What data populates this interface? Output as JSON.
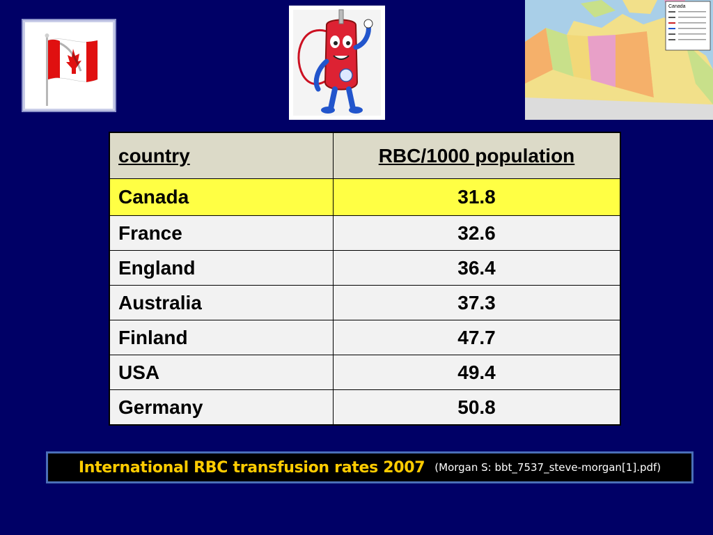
{
  "images": {
    "flag_icon": "canada-flag-icon",
    "mascot_icon": "blood-bag-mascot-icon",
    "map_icon": "canada-map-icon",
    "map_title": "Canada"
  },
  "table": {
    "headers": [
      "country",
      "RBC/1000 population"
    ],
    "rows": [
      {
        "country": "Canada",
        "value": "31.8"
      },
      {
        "country": "France",
        "value": "32.6"
      },
      {
        "country": "England",
        "value": "36.4"
      },
      {
        "country": "Australia",
        "value": "37.3"
      },
      {
        "country": "Finland",
        "value": "47.7"
      },
      {
        "country": "USA",
        "value": "49.4"
      },
      {
        "country": "Germany",
        "value": "50.8"
      }
    ],
    "highlight_color": "#ffff44",
    "header_color": "#dcdac8"
  },
  "caption": {
    "title": "International RBC transfusion rates 2007",
    "source": "(Morgan S:  bbt_7537_steve-morgan[1].pdf)"
  },
  "colors": {
    "background": "#000066",
    "caption_title": "#ffcc00"
  }
}
